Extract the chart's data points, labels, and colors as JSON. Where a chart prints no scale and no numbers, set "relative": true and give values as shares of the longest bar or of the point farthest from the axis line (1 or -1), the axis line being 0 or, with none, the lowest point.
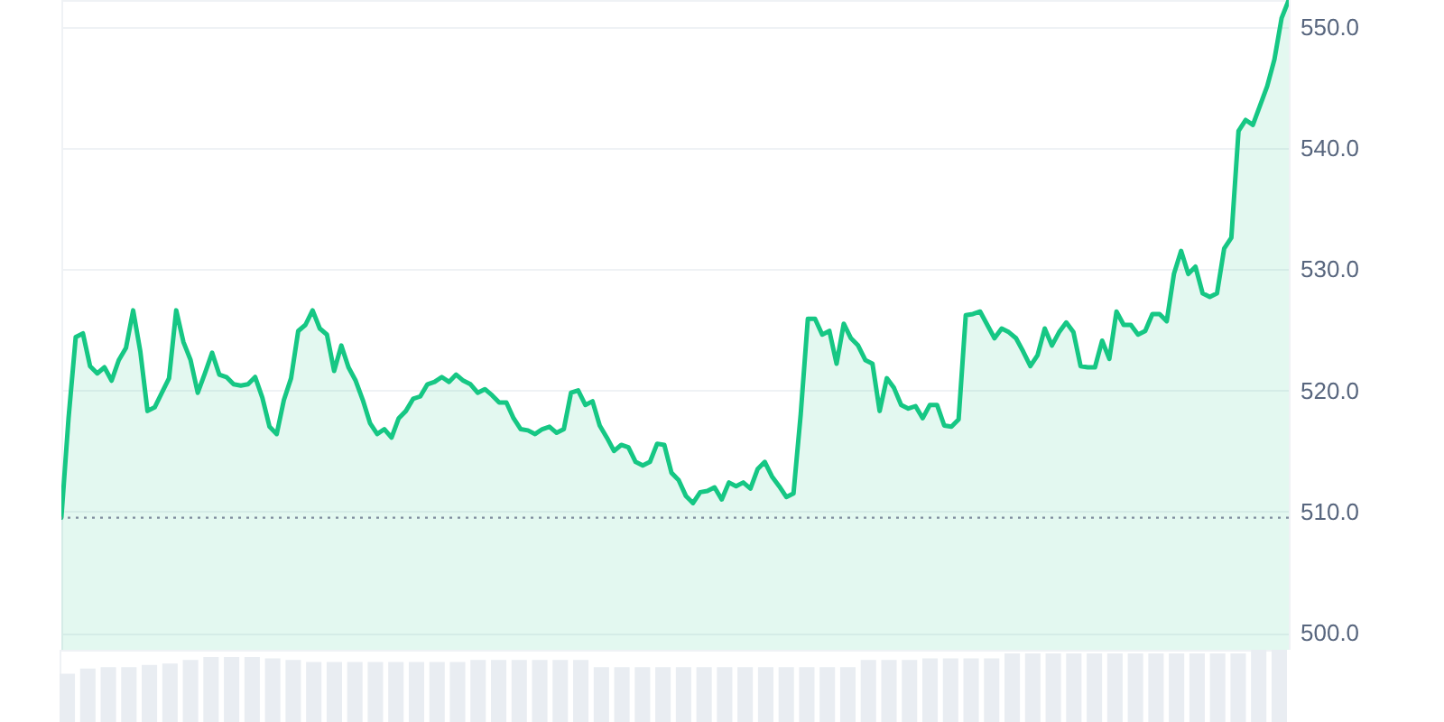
{
  "chart_data": [
    {
      "type": "line",
      "color": "#16c784",
      "grid": "y",
      "tick_labels": "y",
      "ylim": [
        498.6,
        552.2
      ],
      "yticks": [
        {
          "value": 500,
          "label": "500.0"
        },
        {
          "value": 510,
          "label": "510.0"
        },
        {
          "value": 520,
          "label": "520.0"
        },
        {
          "value": 530,
          "label": "530.0"
        },
        {
          "value": 540,
          "label": "540.0"
        },
        {
          "value": 550,
          "label": "550.0"
        }
      ],
      "ref_lines": [
        {
          "axis": "y",
          "value": 509.5,
          "color": "#7f8c9d",
          "line_style": "dotted"
        }
      ],
      "categories": [
        null,
        null,
        null,
        null,
        null,
        null,
        null,
        null,
        null,
        null,
        null,
        null,
        null,
        null,
        null,
        null,
        null,
        null,
        null,
        null,
        null,
        null,
        null,
        null,
        null,
        null,
        null,
        null,
        null,
        null,
        null,
        null,
        null,
        null,
        null,
        null,
        null,
        null,
        null,
        null,
        null,
        null,
        null,
        null,
        null,
        null,
        null,
        null,
        null,
        null,
        null,
        null,
        null,
        null,
        null,
        null,
        null,
        null,
        null,
        null,
        null,
        null,
        null,
        null,
        null,
        null,
        null,
        null,
        null,
        null,
        null,
        null,
        null,
        null,
        null,
        null,
        null,
        null,
        null,
        null,
        null,
        null,
        null,
        null,
        null,
        null,
        null,
        null,
        null,
        null,
        null,
        null,
        null,
        null,
        null,
        null,
        null,
        null,
        null,
        null,
        null,
        null,
        null,
        null,
        null,
        null,
        null,
        null,
        null,
        null,
        null,
        null,
        null,
        null,
        null,
        null,
        null,
        null,
        null,
        null,
        null,
        null,
        null,
        null,
        null,
        null,
        null,
        null,
        null,
        null,
        null,
        null,
        null,
        null,
        null,
        null,
        null,
        null,
        null,
        null,
        null,
        null,
        null,
        null,
        null,
        null,
        null,
        null,
        null,
        null,
        null,
        null,
        null,
        null,
        null,
        null,
        null,
        null,
        null,
        null,
        null,
        null,
        null,
        null,
        null,
        null,
        null,
        null,
        null,
        null,
        null,
        null
      ],
      "values": [
        509.5,
        517.7,
        524.4,
        524.7,
        522.0,
        521.4,
        521.9,
        520.8,
        522.5,
        523.5,
        526.6,
        523.2,
        518.3,
        518.6,
        519.8,
        521.0,
        526.6,
        524.0,
        522.5,
        519.8,
        521.4,
        523.1,
        521.3,
        521.1,
        520.5,
        520.4,
        520.5,
        521.1,
        519.4,
        517.0,
        516.4,
        519.2,
        521.0,
        524.9,
        525.4,
        526.6,
        525.1,
        524.6,
        521.6,
        523.7,
        521.9,
        520.8,
        519.2,
        517.3,
        516.4,
        516.8,
        516.1,
        517.7,
        518.3,
        519.3,
        519.5,
        520.5,
        520.7,
        521.1,
        520.7,
        521.3,
        520.8,
        520.5,
        519.8,
        520.1,
        519.6,
        519.0,
        519.0,
        517.7,
        516.8,
        516.7,
        516.4,
        516.8,
        517.0,
        516.5,
        516.8,
        519.8,
        520.0,
        518.8,
        519.1,
        517.1,
        516.1,
        515.0,
        515.5,
        515.3,
        514.1,
        513.8,
        514.1,
        515.6,
        515.5,
        513.2,
        512.6,
        511.3,
        510.7,
        511.6,
        511.7,
        512.0,
        511.0,
        512.4,
        512.1,
        512.4,
        511.9,
        513.5,
        514.1,
        512.9,
        512.1,
        511.2,
        511.5,
        518.0,
        525.9,
        525.9,
        524.6,
        524.9,
        522.2,
        525.5,
        524.3,
        523.7,
        522.5,
        522.2,
        518.3,
        521.0,
        520.2,
        518.8,
        518.5,
        518.7,
        517.7,
        518.8,
        518.8,
        517.1,
        517.0,
        517.6,
        526.2,
        526.3,
        526.5,
        525.4,
        524.3,
        525.1,
        524.8,
        524.3,
        523.2,
        522.0,
        522.9,
        525.1,
        523.7,
        524.8,
        525.6,
        524.8,
        522.0,
        521.9,
        521.9,
        524.1,
        522.6,
        526.5,
        525.4,
        525.4,
        524.6,
        524.9,
        526.3,
        526.3,
        525.7,
        529.6,
        531.5,
        529.6,
        530.2,
        528.0,
        527.7,
        528.0,
        531.7,
        532.6,
        541.4,
        542.3,
        541.9,
        543.5,
        545.1,
        547.3,
        550.7,
        552.2
      ]
    },
    {
      "type": "bar",
      "relative": true,
      "color": "#e9edf2",
      "categories": [
        null,
        null,
        null,
        null,
        null,
        null,
        null,
        null,
        null,
        null,
        null,
        null,
        null,
        null,
        null,
        null,
        null,
        null,
        null,
        null,
        null,
        null,
        null,
        null,
        null,
        null,
        null,
        null,
        null,
        null,
        null,
        null,
        null,
        null,
        null,
        null,
        null,
        null,
        null,
        null,
        null,
        null,
        null,
        null,
        null,
        null,
        null,
        null,
        null,
        null,
        null,
        null,
        null,
        null,
        null,
        null,
        null,
        null,
        null,
        null
      ],
      "values": [
        0.67,
        0.74,
        0.76,
        0.76,
        0.79,
        0.81,
        0.86,
        0.9,
        0.9,
        0.9,
        0.88,
        0.86,
        0.83,
        0.83,
        0.83,
        0.83,
        0.83,
        0.83,
        0.83,
        0.83,
        0.86,
        0.86,
        0.86,
        0.86,
        0.86,
        0.86,
        0.76,
        0.76,
        0.76,
        0.76,
        0.76,
        0.76,
        0.76,
        0.76,
        0.76,
        0.76,
        0.76,
        0.76,
        0.76,
        0.86,
        0.86,
        0.86,
        0.88,
        0.88,
        0.88,
        0.88,
        0.95,
        0.95,
        0.95,
        0.95,
        0.95,
        0.95,
        0.95,
        0.95,
        0.95,
        0.95,
        0.95,
        0.95,
        1,
        1
      ]
    }
  ]
}
